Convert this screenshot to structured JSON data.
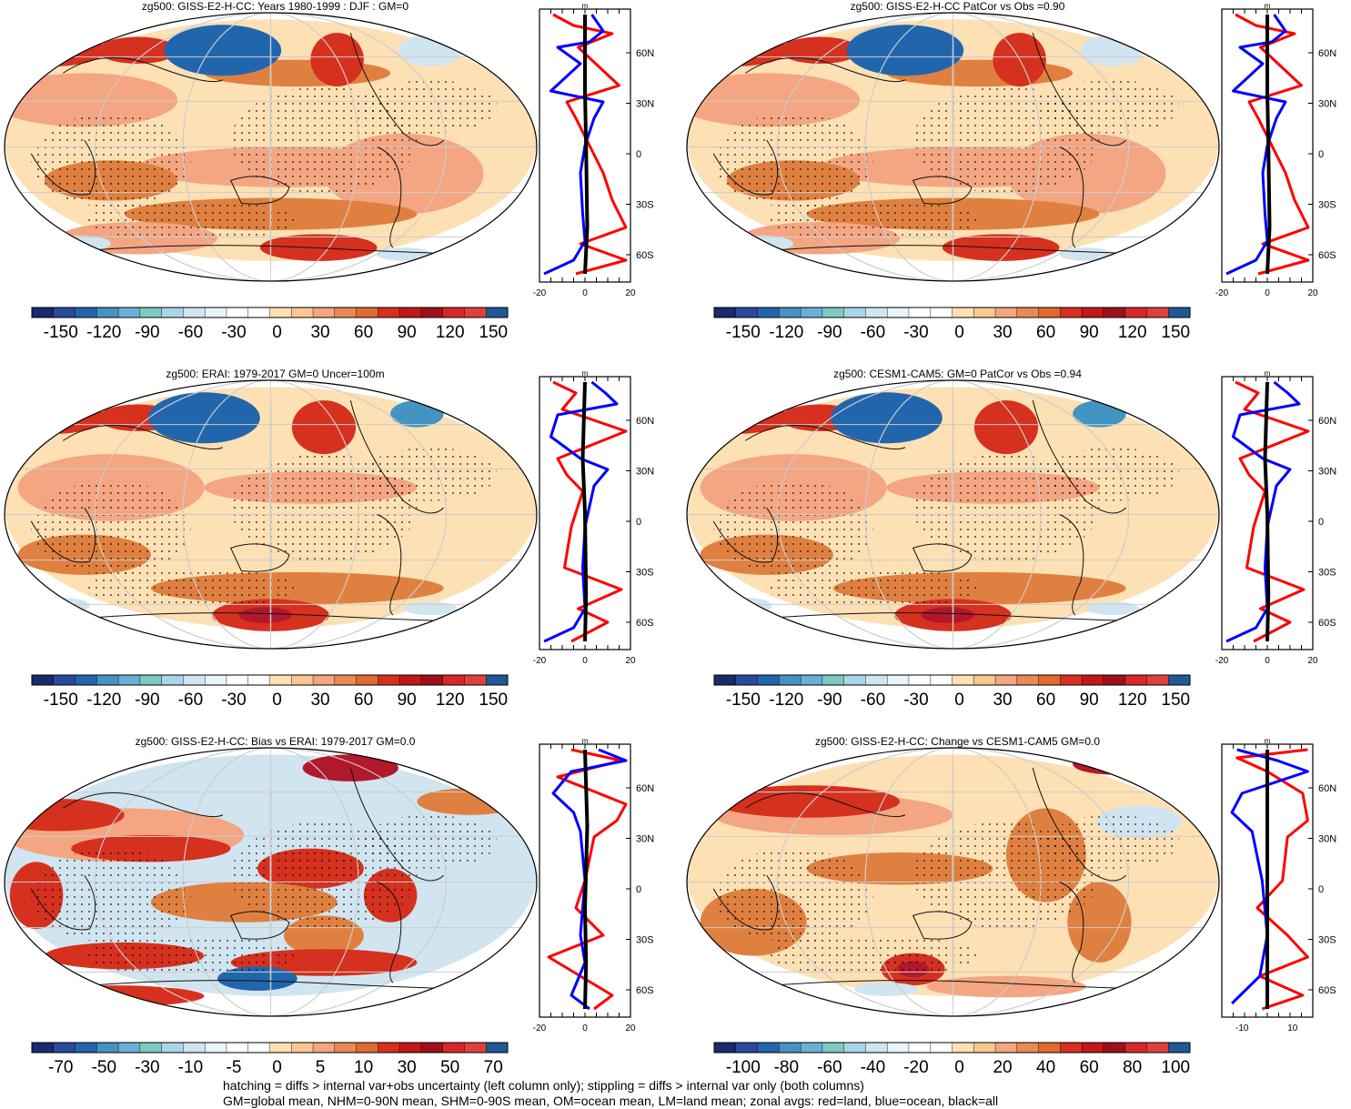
{
  "colors": {
    "dark_blue": "#1a2a6c",
    "blue": "#2166ac",
    "mid_blue": "#4393c3",
    "light_blue": "#92c5de",
    "pale_blue": "#d1e5f0",
    "cream": "#fde0b4",
    "tan": "#f4a582",
    "orange": "#e08040",
    "red": "#d6301f",
    "dark_red": "#b2182b",
    "ocean_zonal": "#0000ff",
    "land_zonal": "#ff0000",
    "all_zonal": "#000000"
  },
  "panels": [
    {
      "title": "zg500: GISS-E2-H-CC: Years 1980-1999 : DJF : GM=0",
      "colorbar": {
        "labels": [
          "-150",
          "-120",
          "-90",
          "-60",
          "-30",
          "0",
          "30",
          "60",
          "90",
          "120",
          "150"
        ],
        "range": [
          -165,
          165
        ]
      },
      "profile": {
        "unit": "m",
        "xticks": [
          "-20",
          "0",
          "20"
        ],
        "xlim": [
          -20,
          20
        ]
      },
      "pattern": "clim_model"
    },
    {
      "title": "zg500: GISS-E2-H-CC PatCor vs Obs =0.90",
      "colorbar": {
        "labels": [
          "-150",
          "-120",
          "-90",
          "-60",
          "-30",
          "0",
          "30",
          "60",
          "90",
          "120",
          "150"
        ],
        "range": [
          -165,
          165
        ]
      },
      "profile": {
        "unit": "m",
        "xticks": [
          "-20",
          "0",
          "20"
        ],
        "xlim": [
          -20,
          20
        ]
      },
      "pattern": "clim_model"
    },
    {
      "title": "zg500: ERAI: 1979-2017 GM=0 Uncer=100m",
      "colorbar": {
        "labels": [
          "-150",
          "-120",
          "-90",
          "-60",
          "-30",
          "0",
          "30",
          "60",
          "90",
          "120",
          "150"
        ],
        "range": [
          -165,
          165
        ]
      },
      "profile": {
        "unit": "m",
        "xticks": [
          "-20",
          "0",
          "20"
        ],
        "xlim": [
          -20,
          20
        ]
      },
      "pattern": "clim_obs"
    },
    {
      "title": "zg500: CESM1-CAM5: GM=0 PatCor vs Obs =0.94",
      "colorbar": {
        "labels": [
          "-150",
          "-120",
          "-90",
          "-60",
          "-30",
          "0",
          "30",
          "60",
          "90",
          "120",
          "150"
        ],
        "range": [
          -165,
          165
        ]
      },
      "profile": {
        "unit": "m",
        "xticks": [
          "-20",
          "0",
          "20"
        ],
        "xlim": [
          -20,
          20
        ]
      },
      "pattern": "clim_obs"
    },
    {
      "title": "zg500: GISS-E2-H-CC: Bias vs ERAI: 1979-2017 GM=0.0",
      "colorbar": {
        "labels": [
          "-70",
          "-50",
          "-30",
          "-10",
          "-5",
          "0",
          "5",
          "10",
          "30",
          "50",
          "70"
        ],
        "range": [
          -80,
          80
        ]
      },
      "profile": {
        "unit": "m",
        "xticks": [
          "-20",
          "0",
          "20"
        ],
        "xlim": [
          -20,
          20
        ]
      },
      "pattern": "bias"
    },
    {
      "title": "zg500: GISS-E2-H-CC: Change vs CESM1-CAM5 GM=0.0",
      "colorbar": {
        "labels": [
          "-100",
          "-80",
          "-60",
          "-40",
          "-20",
          "0",
          "20",
          "40",
          "60",
          "80",
          "100"
        ],
        "range": [
          -110,
          110
        ]
      },
      "profile": {
        "unit": "m",
        "xticks": [
          "-10",
          "10"
        ],
        "xlim": [
          -18,
          18
        ]
      },
      "pattern": "change"
    }
  ],
  "lat_labels": [
    "60N",
    "30N",
    "0",
    "30S",
    "60S"
  ],
  "footer": {
    "line1": "hatching = diffs > internal var+obs uncertainty (left column only); stippling = diffs > internal var only (both columns)",
    "line2": "GM=global mean, NHM=0-90N mean, SHM=0-90S mean, OM=ocean mean, LM=land mean; zonal avgs: red=land, blue=ocean, black=all"
  },
  "chart_data": {
    "type": "heatmap",
    "variable": "zg500",
    "unit": "m",
    "panels": [
      {
        "title": "zg500: GISS-E2-H-CC: Years 1980-1999 : DJF : GM=0",
        "zonal_axis": {
          "y_ticks": [
            "60N",
            "30N",
            "0",
            "30S",
            "60S"
          ],
          "x_ticks": [
            -20,
            0,
            20
          ]
        }
      },
      {
        "title": "zg500: GISS-E2-H-CC PatCor vs Obs =0.90",
        "pattern_correlation": 0.9
      },
      {
        "title": "zg500: ERAI: 1979-2017 GM=0 Uncer=100m",
        "uncertainty_m": 100
      },
      {
        "title": "zg500: CESM1-CAM5: GM=0 PatCor vs Obs =0.94",
        "pattern_correlation": 0.94
      },
      {
        "title": "zg500: GISS-E2-H-CC: Bias vs ERAI: 1979-2017 GM=0.0",
        "global_mean": 0.0
      },
      {
        "title": "zg500: GISS-E2-H-CC: Change vs CESM1-CAM5 GM=0.0",
        "global_mean": 0.0
      }
    ],
    "zonal_profiles_series": [
      {
        "name": "land",
        "color": "red"
      },
      {
        "name": "ocean",
        "color": "blue"
      },
      {
        "name": "all",
        "color": "black"
      }
    ]
  }
}
